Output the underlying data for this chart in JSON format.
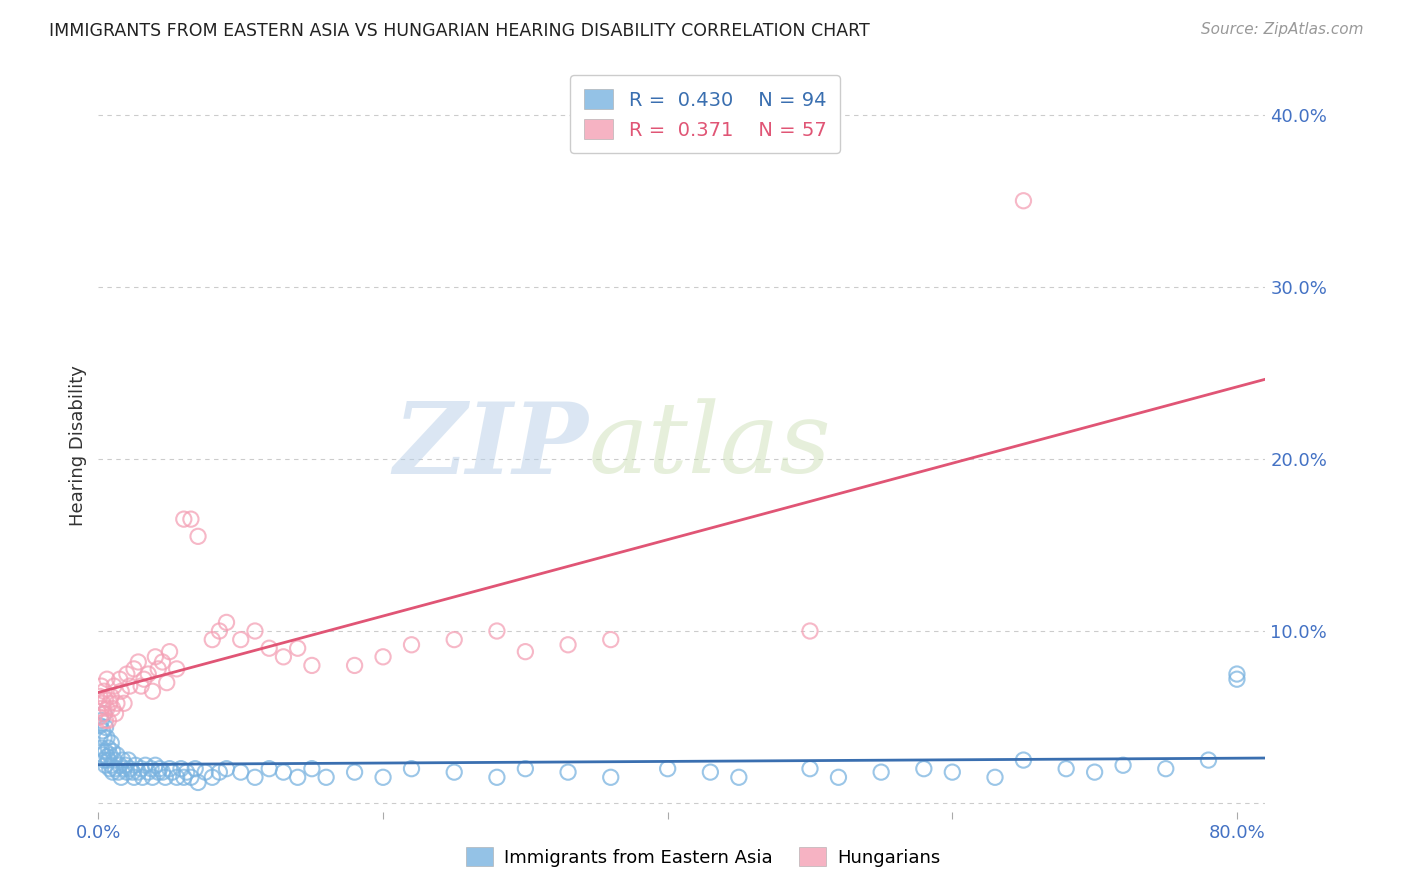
{
  "title": "IMMIGRANTS FROM EASTERN ASIA VS HUNGARIAN HEARING DISABILITY CORRELATION CHART",
  "source": "Source: ZipAtlas.com",
  "ylabel": "Hearing Disability",
  "xlim": [
    0.0,
    0.82
  ],
  "ylim": [
    -0.005,
    0.42
  ],
  "blue_color": "#7ab3e0",
  "pink_color": "#f4a0b5",
  "blue_line_color": "#3a6fb0",
  "pink_line_color": "#e05575",
  "blue_R": 0.43,
  "blue_N": 94,
  "pink_R": 0.371,
  "pink_N": 57,
  "legend_label_blue": "Immigrants from Eastern Asia",
  "legend_label_pink": "Hungarians",
  "watermark_zip": "ZIP",
  "watermark_atlas": "atlas",
  "background_color": "#ffffff",
  "grid_color": "#cccccc",
  "tick_color": "#4472c4",
  "title_color": "#222222",
  "blue_scatter_x": [
    0.001,
    0.001,
    0.002,
    0.002,
    0.003,
    0.003,
    0.004,
    0.004,
    0.004,
    0.005,
    0.005,
    0.005,
    0.006,
    0.006,
    0.007,
    0.007,
    0.008,
    0.008,
    0.009,
    0.009,
    0.01,
    0.01,
    0.011,
    0.012,
    0.013,
    0.014,
    0.015,
    0.016,
    0.017,
    0.018,
    0.019,
    0.02,
    0.021,
    0.022,
    0.024,
    0.025,
    0.026,
    0.028,
    0.03,
    0.031,
    0.033,
    0.035,
    0.037,
    0.038,
    0.04,
    0.042,
    0.043,
    0.045,
    0.047,
    0.05,
    0.052,
    0.055,
    0.058,
    0.06,
    0.062,
    0.065,
    0.068,
    0.07,
    0.075,
    0.08,
    0.085,
    0.09,
    0.1,
    0.11,
    0.12,
    0.13,
    0.14,
    0.15,
    0.16,
    0.18,
    0.2,
    0.22,
    0.25,
    0.28,
    0.3,
    0.33,
    0.36,
    0.4,
    0.43,
    0.45,
    0.5,
    0.52,
    0.55,
    0.58,
    0.6,
    0.63,
    0.65,
    0.68,
    0.7,
    0.72,
    0.75,
    0.78,
    0.8,
    0.8
  ],
  "blue_scatter_y": [
    0.038,
    0.045,
    0.032,
    0.048,
    0.028,
    0.042,
    0.025,
    0.038,
    0.052,
    0.03,
    0.022,
    0.044,
    0.027,
    0.038,
    0.025,
    0.032,
    0.02,
    0.028,
    0.022,
    0.035,
    0.018,
    0.03,
    0.025,
    0.02,
    0.028,
    0.018,
    0.022,
    0.015,
    0.025,
    0.02,
    0.022,
    0.018,
    0.025,
    0.02,
    0.018,
    0.015,
    0.022,
    0.018,
    0.02,
    0.015,
    0.022,
    0.018,
    0.02,
    0.015,
    0.022,
    0.018,
    0.02,
    0.018,
    0.015,
    0.02,
    0.018,
    0.015,
    0.02,
    0.015,
    0.018,
    0.015,
    0.02,
    0.012,
    0.018,
    0.015,
    0.018,
    0.02,
    0.018,
    0.015,
    0.02,
    0.018,
    0.015,
    0.02,
    0.015,
    0.018,
    0.015,
    0.02,
    0.018,
    0.015,
    0.02,
    0.018,
    0.015,
    0.02,
    0.018,
    0.015,
    0.02,
    0.015,
    0.018,
    0.02,
    0.018,
    0.015,
    0.025,
    0.02,
    0.018,
    0.022,
    0.02,
    0.025,
    0.072,
    0.075
  ],
  "pink_scatter_x": [
    0.001,
    0.001,
    0.002,
    0.002,
    0.003,
    0.004,
    0.004,
    0.005,
    0.005,
    0.006,
    0.006,
    0.007,
    0.008,
    0.009,
    0.01,
    0.011,
    0.012,
    0.013,
    0.015,
    0.016,
    0.018,
    0.02,
    0.022,
    0.025,
    0.028,
    0.03,
    0.032,
    0.035,
    0.038,
    0.04,
    0.042,
    0.045,
    0.048,
    0.05,
    0.055,
    0.06,
    0.065,
    0.07,
    0.08,
    0.085,
    0.09,
    0.1,
    0.11,
    0.12,
    0.13,
    0.14,
    0.15,
    0.18,
    0.2,
    0.22,
    0.25,
    0.28,
    0.3,
    0.33,
    0.36,
    0.5,
    0.65
  ],
  "pink_scatter_y": [
    0.05,
    0.062,
    0.055,
    0.068,
    0.058,
    0.052,
    0.065,
    0.048,
    0.06,
    0.055,
    0.072,
    0.048,
    0.058,
    0.062,
    0.055,
    0.068,
    0.052,
    0.058,
    0.072,
    0.065,
    0.058,
    0.075,
    0.068,
    0.078,
    0.082,
    0.068,
    0.072,
    0.075,
    0.065,
    0.085,
    0.078,
    0.082,
    0.07,
    0.088,
    0.078,
    0.165,
    0.165,
    0.155,
    0.095,
    0.1,
    0.105,
    0.095,
    0.1,
    0.09,
    0.085,
    0.09,
    0.08,
    0.08,
    0.085,
    0.092,
    0.095,
    0.1,
    0.088,
    0.092,
    0.095,
    0.1,
    0.35
  ]
}
